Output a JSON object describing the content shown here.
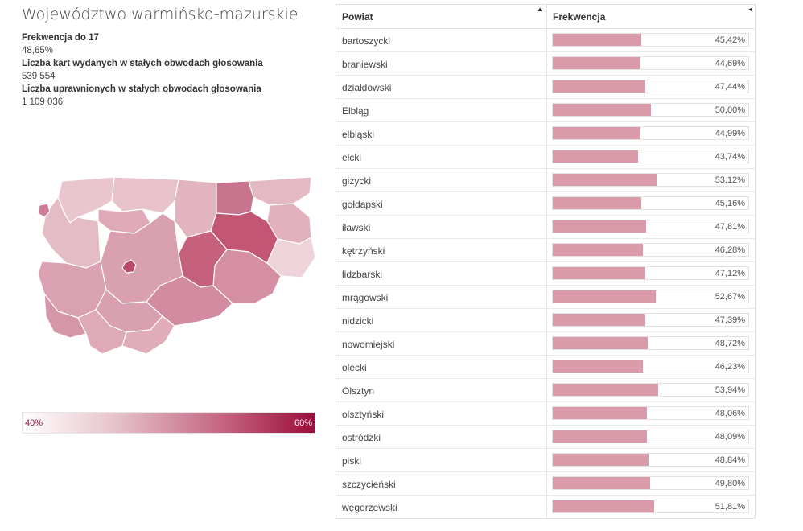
{
  "region": {
    "title": "Województwo warmińsko-mazurskie",
    "stats": [
      {
        "label": "Frekwencja do 17",
        "value": "48,65%"
      },
      {
        "label": "Liczba kart wydanych w stałych obwodach głosowania",
        "value": "539 554"
      },
      {
        "label": "Liczba uprawnionych w stałych obwodach głosowania",
        "value": "1 109 036"
      }
    ]
  },
  "legend": {
    "min_label": "40%",
    "max_label": "60%"
  },
  "colors": {
    "bar": "#d99aaa",
    "scale_low": "#ffffff",
    "scale_high": "#9c0d3b"
  },
  "table": {
    "columns": [
      "Powiat",
      "Frekwencja"
    ],
    "sort_icons": [
      "▲",
      "◂"
    ],
    "scale_max_percent": 100,
    "rows": [
      {
        "name": "bartoszycki",
        "label": "45,42%",
        "value": 45.42
      },
      {
        "name": "braniewski",
        "label": "44,69%",
        "value": 44.69
      },
      {
        "name": "działdowski",
        "label": "47,44%",
        "value": 47.44
      },
      {
        "name": "Elbląg",
        "label": "50,00%",
        "value": 50.0
      },
      {
        "name": "elbląski",
        "label": "44,99%",
        "value": 44.99
      },
      {
        "name": "ełcki",
        "label": "43,74%",
        "value": 43.74
      },
      {
        "name": "giżycki",
        "label": "53,12%",
        "value": 53.12
      },
      {
        "name": "gołdapski",
        "label": "45,16%",
        "value": 45.16
      },
      {
        "name": "iławski",
        "label": "47,81%",
        "value": 47.81
      },
      {
        "name": "kętrzyński",
        "label": "46,28%",
        "value": 46.28
      },
      {
        "name": "lidzbarski",
        "label": "47,12%",
        "value": 47.12
      },
      {
        "name": "mrągowski",
        "label": "52,67%",
        "value": 52.67
      },
      {
        "name": "nidzicki",
        "label": "47,39%",
        "value": 47.39
      },
      {
        "name": "nowomiejski",
        "label": "48,72%",
        "value": 48.72
      },
      {
        "name": "olecki",
        "label": "46,23%",
        "value": 46.23
      },
      {
        "name": "Olsztyn",
        "label": "53,94%",
        "value": 53.94
      },
      {
        "name": "olsztyński",
        "label": "48,06%",
        "value": 48.06
      },
      {
        "name": "ostródzki",
        "label": "48,09%",
        "value": 48.09
      },
      {
        "name": "piski",
        "label": "48,84%",
        "value": 48.84
      },
      {
        "name": "szczycieński",
        "label": "49,80%",
        "value": 49.8
      },
      {
        "name": "węgorzewski",
        "label": "51,81%",
        "value": 51.81
      }
    ]
  }
}
